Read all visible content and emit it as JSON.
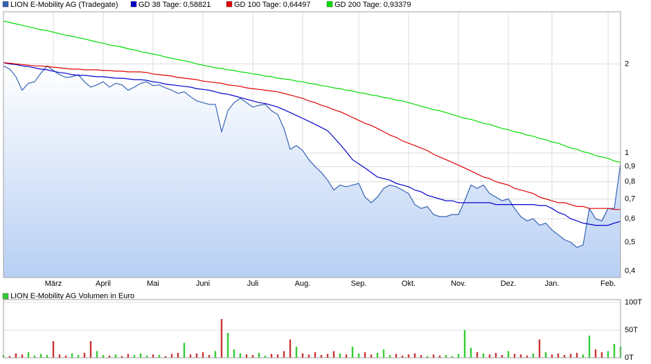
{
  "chart_data": [
    {
      "type": "line",
      "log_scale": true,
      "grid": true,
      "ylim": [
        0.38,
        3.0
      ],
      "yticks": [
        {
          "value": 0.4,
          "label": "0,4"
        },
        {
          "value": 0.5,
          "label": "0,5"
        },
        {
          "value": 0.6,
          "label": "0,6"
        },
        {
          "value": 0.7,
          "label": "0,7"
        },
        {
          "value": 0.8,
          "label": "0,8"
        },
        {
          "value": 0.9,
          "label": "0,9"
        },
        1,
        2
      ],
      "categories": [
        null,
        null,
        null,
        null,
        null,
        null,
        null,
        null,
        "März",
        null,
        null,
        null,
        null,
        null,
        null,
        null,
        "April",
        null,
        null,
        null,
        null,
        null,
        null,
        null,
        "Mai",
        null,
        null,
        null,
        null,
        null,
        null,
        null,
        "Juni",
        null,
        null,
        null,
        null,
        null,
        null,
        null,
        "Juli",
        null,
        null,
        null,
        null,
        null,
        null,
        null,
        "Aug.",
        null,
        null,
        null,
        null,
        null,
        null,
        null,
        null,
        "Sep.",
        null,
        null,
        null,
        null,
        null,
        null,
        null,
        "Okt.",
        null,
        null,
        null,
        null,
        null,
        null,
        null,
        "Nov.",
        null,
        null,
        null,
        null,
        null,
        null,
        null,
        "Dez.",
        null,
        null,
        null,
        null,
        null,
        null,
        "Jan.",
        null,
        null,
        null,
        null,
        null,
        null,
        null,
        null,
        "Feb.",
        null,
        null
      ],
      "series": [
        {
          "name": "LION E-Mobility AG (Tradegate)",
          "color": "#3462b4",
          "fill": true,
          "values": [
            1.97,
            1.92,
            1.81,
            1.63,
            1.72,
            1.74,
            1.86,
            1.97,
            1.9,
            1.84,
            1.8,
            1.81,
            1.84,
            1.74,
            1.67,
            1.7,
            1.74,
            1.67,
            1.72,
            1.7,
            1.63,
            1.67,
            1.72,
            1.74,
            1.69,
            1.7,
            1.66,
            1.63,
            1.59,
            1.61,
            1.55,
            1.5,
            1.48,
            1.46,
            1.46,
            1.18,
            1.39,
            1.48,
            1.53,
            1.48,
            1.43,
            1.45,
            1.46,
            1.39,
            1.35,
            1.21,
            1.03,
            1.06,
            1.02,
            0.95,
            0.9,
            0.86,
            0.81,
            0.75,
            0.78,
            0.77,
            0.78,
            0.79,
            0.71,
            0.68,
            0.71,
            0.76,
            0.78,
            0.77,
            0.75,
            0.73,
            0.67,
            0.65,
            0.66,
            0.62,
            0.61,
            0.61,
            0.62,
            0.62,
            0.69,
            0.78,
            0.76,
            0.78,
            0.73,
            0.71,
            0.69,
            0.7,
            0.65,
            0.61,
            0.59,
            0.6,
            0.57,
            0.58,
            0.55,
            0.53,
            0.51,
            0.5,
            0.48,
            0.49,
            0.65,
            0.6,
            0.59,
            0.65,
            0.65,
            0.92
          ]
        },
        {
          "name": "GD 38 Tage: 0,58821",
          "color": "#0000c8",
          "values": [
            2.02,
            2.0,
            1.99,
            1.97,
            1.96,
            1.94,
            1.92,
            1.91,
            1.89,
            1.87,
            1.86,
            1.84,
            1.83,
            1.83,
            1.82,
            1.81,
            1.81,
            1.8,
            1.79,
            1.79,
            1.78,
            1.77,
            1.77,
            1.76,
            1.74,
            1.73,
            1.71,
            1.7,
            1.69,
            1.68,
            1.67,
            1.65,
            1.64,
            1.63,
            1.61,
            1.59,
            1.58,
            1.56,
            1.54,
            1.52,
            1.5,
            1.48,
            1.47,
            1.45,
            1.43,
            1.4,
            1.37,
            1.34,
            1.31,
            1.28,
            1.25,
            1.22,
            1.19,
            1.13,
            1.07,
            1.01,
            0.95,
            0.92,
            0.89,
            0.86,
            0.83,
            0.82,
            0.81,
            0.79,
            0.78,
            0.77,
            0.75,
            0.74,
            0.72,
            0.71,
            0.7,
            0.69,
            0.69,
            0.68,
            0.68,
            0.68,
            0.68,
            0.68,
            0.68,
            0.67,
            0.67,
            0.67,
            0.67,
            0.67,
            0.67,
            0.67,
            0.665,
            0.665,
            0.65,
            0.63,
            0.62,
            0.6,
            0.59,
            0.58,
            0.575,
            0.57,
            0.57,
            0.57,
            0.58,
            0.588
          ]
        },
        {
          "name": "GD 100 Tage: 0,64497",
          "color": "#e00000",
          "values": [
            2.02,
            2.01,
            2.0,
            1.99,
            1.98,
            1.97,
            1.97,
            1.96,
            1.95,
            1.94,
            1.93,
            1.92,
            1.92,
            1.91,
            1.91,
            1.91,
            1.9,
            1.9,
            1.89,
            1.89,
            1.88,
            1.88,
            1.88,
            1.87,
            1.85,
            1.84,
            1.83,
            1.82,
            1.8,
            1.79,
            1.78,
            1.77,
            1.75,
            1.74,
            1.73,
            1.72,
            1.7,
            1.69,
            1.68,
            1.66,
            1.65,
            1.64,
            1.63,
            1.62,
            1.61,
            1.59,
            1.57,
            1.55,
            1.53,
            1.5,
            1.48,
            1.45,
            1.43,
            1.4,
            1.38,
            1.35,
            1.32,
            1.29,
            1.26,
            1.24,
            1.21,
            1.18,
            1.15,
            1.13,
            1.1,
            1.08,
            1.06,
            1.04,
            1.02,
            0.99,
            0.97,
            0.95,
            0.93,
            0.91,
            0.89,
            0.87,
            0.85,
            0.83,
            0.82,
            0.8,
            0.79,
            0.78,
            0.76,
            0.75,
            0.74,
            0.73,
            0.71,
            0.7,
            0.69,
            0.68,
            0.68,
            0.67,
            0.66,
            0.66,
            0.65,
            0.65,
            0.65,
            0.65,
            0.645,
            0.645
          ]
        },
        {
          "name": "GD 200 Tage: 0,93379",
          "color": "#00dd00",
          "values": [
            2.79,
            2.76,
            2.73,
            2.7,
            2.67,
            2.64,
            2.61,
            2.59,
            2.56,
            2.53,
            2.5,
            2.48,
            2.45,
            2.43,
            2.4,
            2.37,
            2.35,
            2.32,
            2.3,
            2.28,
            2.25,
            2.23,
            2.2,
            2.18,
            2.16,
            2.14,
            2.11,
            2.09,
            2.07,
            2.05,
            2.03,
            2.0,
            1.98,
            1.96,
            1.94,
            1.93,
            1.91,
            1.9,
            1.88,
            1.87,
            1.85,
            1.84,
            1.82,
            1.81,
            1.79,
            1.78,
            1.77,
            1.75,
            1.74,
            1.72,
            1.71,
            1.69,
            1.68,
            1.66,
            1.65,
            1.63,
            1.62,
            1.6,
            1.59,
            1.57,
            1.56,
            1.54,
            1.53,
            1.51,
            1.5,
            1.48,
            1.46,
            1.44,
            1.42,
            1.4,
            1.39,
            1.37,
            1.35,
            1.33,
            1.31,
            1.3,
            1.28,
            1.26,
            1.25,
            1.23,
            1.21,
            1.2,
            1.18,
            1.17,
            1.15,
            1.14,
            1.12,
            1.11,
            1.09,
            1.08,
            1.06,
            1.04,
            1.03,
            1.01,
            1.0,
            0.98,
            0.97,
            0.96,
            0.94,
            0.93
          ]
        }
      ]
    },
    {
      "type": "bar",
      "title": "LION E-Mobility AG Volumen in Euro",
      "color": "#33cc33",
      "grid": true,
      "ylim": [
        0,
        105000
      ],
      "yticks": [
        {
          "value": 0,
          "label": "0T"
        },
        {
          "value": 50000,
          "label": "50T"
        },
        {
          "value": 100000,
          "label": "100T"
        }
      ],
      "values": [
        5000,
        3000,
        8000,
        6000,
        10000,
        4000,
        7000,
        5000,
        30000,
        6000,
        4000,
        8000,
        5000,
        9000,
        30000,
        12000,
        5000,
        4000,
        6000,
        3000,
        7000,
        5000,
        8000,
        4000,
        6000,
        5000,
        3000,
        7000,
        9000,
        27000,
        6000,
        8000,
        10000,
        5000,
        12000,
        70000,
        45000,
        15000,
        8000,
        6000,
        5000,
        9000,
        4000,
        7000,
        6000,
        12000,
        33000,
        20000,
        8000,
        6000,
        10000,
        5000,
        7000,
        12000,
        8000,
        6000,
        20000,
        8000,
        10000,
        6000,
        9000,
        15000,
        5000,
        7000,
        4000,
        6000,
        8000,
        5000,
        3000,
        6000,
        4000,
        5000,
        3000,
        7000,
        50000,
        18000,
        10000,
        8000,
        6000,
        9000,
        5000,
        12000,
        7000,
        6000,
        4000,
        8000,
        33000,
        10000,
        6000,
        8000,
        5000,
        7000,
        9000,
        6000,
        40000,
        15000,
        10000,
        12000,
        25000,
        20000
      ],
      "colors": [
        "#33cc33",
        "#cc3333",
        "#cc3333",
        "#cc3333",
        "#33cc33",
        "#33cc33",
        "#33cc33",
        "#33cc33",
        "#cc3333",
        "#cc3333",
        "#cc3333",
        "#33cc33",
        "#33cc33",
        "#cc3333",
        "#cc3333",
        "#33cc33",
        "#33cc33",
        "#cc3333",
        "#33cc33",
        "#cc3333",
        "#cc3333",
        "#33cc33",
        "#33cc33",
        "#33cc33",
        "#cc3333",
        "#33cc33",
        "#cc3333",
        "#cc3333",
        "#cc3333",
        "#33cc33",
        "#cc3333",
        "#cc3333",
        "#cc3333",
        "#cc3333",
        "#33cc33",
        "#cc3333",
        "#33cc33",
        "#33cc33",
        "#33cc33",
        "#cc3333",
        "#cc3333",
        "#33cc33",
        "#33cc33",
        "#cc3333",
        "#cc3333",
        "#cc3333",
        "#cc3333",
        "#33cc33",
        "#cc3333",
        "#cc3333",
        "#cc3333",
        "#cc3333",
        "#cc3333",
        "#cc3333",
        "#33cc33",
        "#cc3333",
        "#33cc33",
        "#33cc33",
        "#cc3333",
        "#cc3333",
        "#33cc33",
        "#33cc33",
        "#33cc33",
        "#cc3333",
        "#cc3333",
        "#cc3333",
        "#cc3333",
        "#cc3333",
        "#33cc33",
        "#cc3333",
        "#cc3333",
        "#33cc33",
        "#33cc33",
        "#33cc33",
        "#33cc33",
        "#33cc33",
        "#cc3333",
        "#33cc33",
        "#cc3333",
        "#cc3333",
        "#cc3333",
        "#33cc33",
        "#cc3333",
        "#cc3333",
        "#cc3333",
        "#33cc33",
        "#cc3333",
        "#33cc33",
        "#cc3333",
        "#cc3333",
        "#cc3333",
        "#cc3333",
        "#cc3333",
        "#33cc33",
        "#33cc33",
        "#cc3333",
        "#cc3333",
        "#33cc33",
        "#33cc33",
        "#33cc33"
      ]
    }
  ]
}
